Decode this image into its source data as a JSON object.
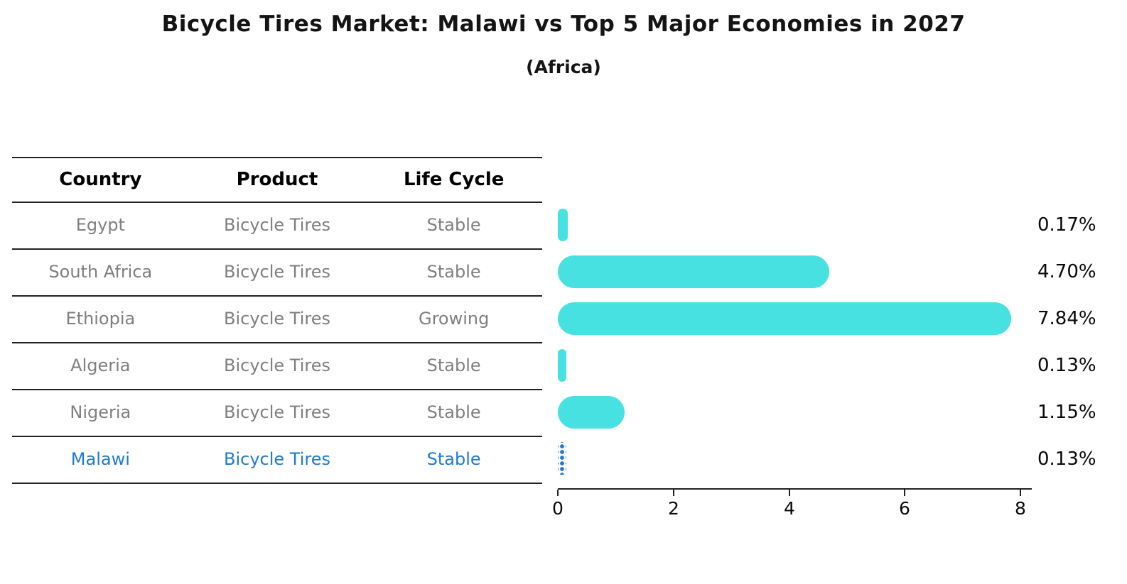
{
  "title": "Bicycle Tires Market: Malawi vs Top 5 Major Economies in 2027",
  "subtitle": "(Africa)",
  "table": {
    "headers": [
      "Country",
      "Product",
      "Life Cycle"
    ]
  },
  "chart_data": {
    "type": "bar",
    "orientation": "horizontal",
    "title": "Bicycle Tires Market: Malawi vs Top 5 Major Economies in 2027",
    "subtitle": "(Africa)",
    "x_ticks": [
      0,
      2,
      4,
      6,
      8
    ],
    "xlim": [
      0,
      8.2
    ],
    "grid": false,
    "legend": "none",
    "rows": [
      {
        "country": "Egypt",
        "product": "Bicycle Tires",
        "life_cycle": "Stable",
        "value": 0.17,
        "label": "0.17%",
        "highlight": false
      },
      {
        "country": "South Africa",
        "product": "Bicycle Tires",
        "life_cycle": "Stable",
        "value": 4.7,
        "label": "4.70%",
        "highlight": false
      },
      {
        "country": "Ethiopia",
        "product": "Bicycle Tires",
        "life_cycle": "Growing",
        "value": 7.84,
        "label": "7.84%",
        "highlight": false
      },
      {
        "country": "Algeria",
        "product": "Bicycle Tires",
        "life_cycle": "Stable",
        "value": 0.13,
        "label": "0.13%",
        "highlight": false
      },
      {
        "country": "Nigeria",
        "product": "Bicycle Tires",
        "life_cycle": "Stable",
        "value": 1.15,
        "label": "1.15%",
        "highlight": false
      },
      {
        "country": "Malawi",
        "product": "Bicycle Tires",
        "life_cycle": "Stable",
        "value": 0.13,
        "label": "0.13%",
        "highlight": true
      }
    ]
  },
  "colors": {
    "bar": "#47e1e1",
    "hl": "#1e7ad1",
    "muted": "#7f7f7f",
    "axis": "#222222",
    "title": "#141414"
  }
}
